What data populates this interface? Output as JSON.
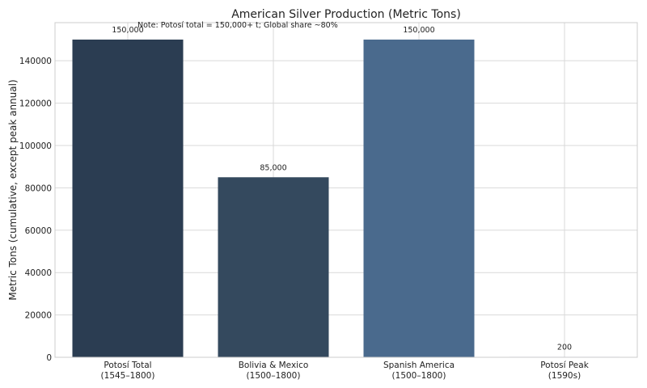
{
  "chart_data": {
    "type": "bar",
    "title": "American Silver Production (Metric Tons)",
    "note": "Note: Potosí total = 150,000+ t; Global share ~80%",
    "xlabel": "",
    "ylabel": "Metric Tons (cumulative, except peak annual)",
    "categories": [
      [
        "Potosí Total",
        "(1545–1800)"
      ],
      [
        "Bolivia & Mexico",
        "(1500–1800)"
      ],
      [
        "Spanish America",
        "(1500–1800)"
      ],
      [
        "Potosí Peak",
        "(1590s)"
      ]
    ],
    "values": [
      150000,
      85000,
      150000,
      200
    ],
    "value_labels": [
      "150,000",
      "85,000",
      "150,000",
      "200"
    ],
    "colors": [
      "#2b3d52",
      "#34495e",
      "#4a6a8d",
      "#5d7fa8"
    ],
    "ylim": [
      0,
      150000
    ],
    "yticks": [
      0,
      20000,
      40000,
      60000,
      80000,
      100000,
      120000,
      140000
    ],
    "grid": true,
    "legend": "none"
  }
}
